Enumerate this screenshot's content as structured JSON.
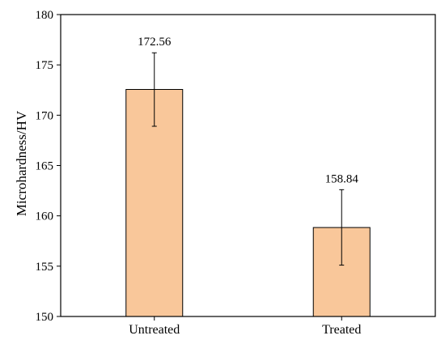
{
  "chart_data": {
    "type": "bar",
    "categories": [
      "Untreated",
      "Treated"
    ],
    "values": [
      172.56,
      158.84
    ],
    "data_labels": [
      "172.56",
      "158.84"
    ],
    "error_bars": [
      {
        "low": 168.9,
        "high": 176.2
      },
      {
        "low": 155.1,
        "high": 162.6
      }
    ],
    "ylabel": "Microhardness/HV",
    "xlabel": "",
    "ylim": [
      150,
      180
    ],
    "yticks": [
      150,
      155,
      160,
      165,
      170,
      175,
      180
    ],
    "bar_color": "#F9C79A",
    "grid": false
  }
}
